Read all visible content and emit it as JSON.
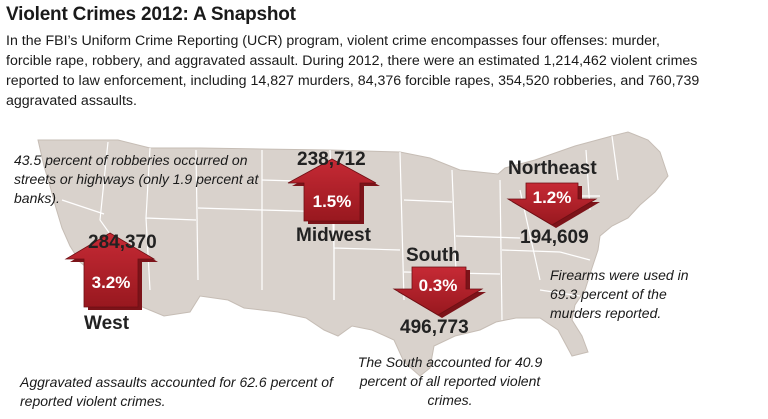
{
  "header": {
    "title": "Violent Crimes 2012: A Snapshot",
    "intro": "In the FBI’s Uniform Crime Reporting (UCR) program, violent crime encompasses four offenses: murder, forcible rape, robbery, and aggravated assault. During 2012, there were an estimated 1,214,462 violent crimes reported to law enforcement, including 14,827 murders, 84,376 forcible rapes, 354,520 robberies, and 760,739 aggravated assaults."
  },
  "colors": {
    "map_fill": "#d9d2cc",
    "map_border": "#ffffff",
    "arrow_red": "#b3232e",
    "arrow_dark": "#7c1319"
  },
  "regions": [
    {
      "name": "West",
      "count": "284,370",
      "percent": "3.2%",
      "direction": "up"
    },
    {
      "name": "Midwest",
      "count": "238,712",
      "percent": "1.5%",
      "direction": "up"
    },
    {
      "name": "South",
      "count": "496,773",
      "percent": "0.3%",
      "direction": "down"
    },
    {
      "name": "Northeast",
      "count": "194,609",
      "percent": "1.2%",
      "direction": "down"
    }
  ],
  "notes": {
    "robberies": "43.5 percent of robberies occurred on streets or highways (only 1.9 percent at banks).",
    "firearms": "Firearms were used in 69.3 percent of the murders reported.",
    "south": "The South accounted for 40.9 percent of all reported violent crimes.",
    "assaults": "Aggravated assaults accounted for 62.6 percent of reported violent crimes."
  }
}
